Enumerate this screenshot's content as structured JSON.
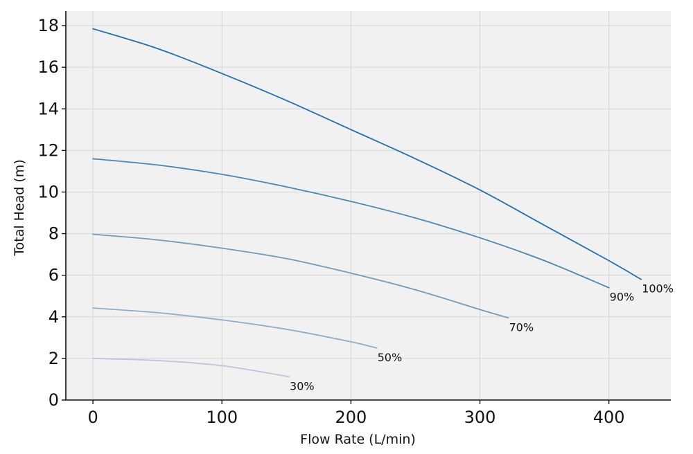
{
  "chart_data": {
    "type": "line",
    "xlabel": "Flow Rate (L/min)",
    "ylabel": "Total Head (m)",
    "xlim": [
      -21,
      448
    ],
    "ylim": [
      0,
      18.7
    ],
    "xticks": [
      0,
      100,
      200,
      300,
      400
    ],
    "yticks": [
      0,
      2,
      4,
      6,
      8,
      10,
      12,
      14,
      16,
      18
    ],
    "grid": true,
    "colors": {
      "background": "#f1f1f1",
      "grid": "#d5d5d5"
    },
    "series": [
      {
        "name": "100%",
        "color": "#1f6fb2",
        "x": [
          0,
          50,
          100,
          150,
          200,
          250,
          300,
          350,
          400,
          425
        ],
        "y": [
          17.85,
          16.9,
          15.7,
          14.4,
          13.0,
          11.6,
          10.1,
          8.4,
          6.7,
          5.8
        ]
      },
      {
        "name": "90%",
        "color": "#4a86b2",
        "x": [
          0,
          50,
          100,
          150,
          200,
          250,
          300,
          350,
          400
        ],
        "y": [
          11.6,
          11.3,
          10.85,
          10.25,
          9.55,
          8.75,
          7.8,
          6.7,
          5.4
        ]
      },
      {
        "name": "70%",
        "color": "#6f9bbd",
        "x": [
          0,
          50,
          100,
          150,
          200,
          250,
          300,
          322
        ],
        "y": [
          7.97,
          7.7,
          7.3,
          6.8,
          6.1,
          5.3,
          4.35,
          3.95
        ]
      },
      {
        "name": "50%",
        "color": "#90adc6",
        "x": [
          0,
          50,
          100,
          150,
          200,
          220
        ],
        "y": [
          4.42,
          4.2,
          3.85,
          3.4,
          2.8,
          2.5
        ]
      },
      {
        "name": "30%",
        "color": "#b8c7d3",
        "x": [
          0,
          50,
          100,
          152
        ],
        "y": [
          2.0,
          1.9,
          1.65,
          1.12
        ]
      }
    ]
  }
}
